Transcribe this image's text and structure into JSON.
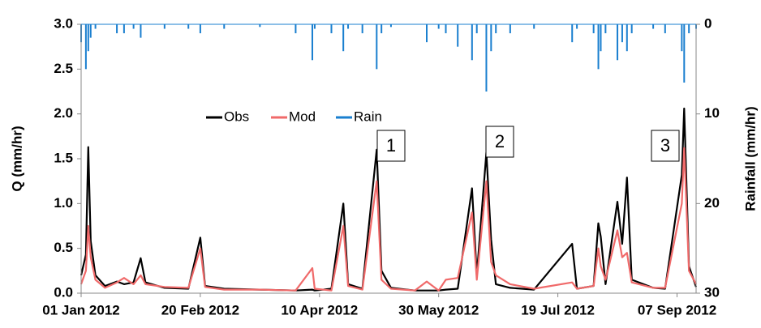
{
  "chart_data": {
    "type": "line",
    "y_label": "Q (mm/hr)",
    "y2_label": "Rainfall (mm/hr)",
    "x": [
      "2012-01-01",
      "2012-01-03",
      "2012-01-04",
      "2012-01-05",
      "2012-01-07",
      "2012-01-11",
      "2012-01-16",
      "2012-01-19",
      "2012-01-23",
      "2012-01-26",
      "2012-01-28",
      "2012-02-05",
      "2012-02-15",
      "2012-02-20",
      "2012-02-22",
      "2012-03-01",
      "2012-03-16",
      "2012-03-31",
      "2012-04-07",
      "2012-04-08",
      "2012-04-15",
      "2012-04-20",
      "2012-04-22",
      "2012-04-28",
      "2012-05-04",
      "2012-05-06",
      "2012-05-10",
      "2012-05-20",
      "2012-05-25",
      "2012-05-30",
      "2012-06-02",
      "2012-06-07",
      "2012-06-13",
      "2012-06-15",
      "2012-06-19",
      "2012-06-21",
      "2012-06-23",
      "2012-06-29",
      "2012-07-09",
      "2012-07-25",
      "2012-07-27",
      "2012-08-03",
      "2012-08-05",
      "2012-08-06",
      "2012-08-08",
      "2012-08-13",
      "2012-08-15",
      "2012-08-17",
      "2012-08-19",
      "2012-08-28",
      "2012-09-02",
      "2012-09-09",
      "2012-09-10",
      "2012-09-12",
      "2012-09-15"
    ],
    "series": [
      {
        "name": "Obs",
        "color": "#000000",
        "values": [
          0.2,
          0.43,
          1.63,
          0.58,
          0.2,
          0.08,
          0.13,
          0.1,
          0.12,
          0.39,
          0.12,
          0.06,
          0.05,
          0.62,
          0.08,
          0.05,
          0.04,
          0.03,
          0.04,
          0.03,
          0.05,
          1.0,
          0.1,
          0.05,
          1.6,
          0.25,
          0.06,
          0.03,
          0.03,
          0.03,
          0.04,
          0.05,
          1.17,
          0.2,
          1.57,
          0.6,
          0.1,
          0.06,
          0.04,
          0.55,
          0.05,
          0.08,
          0.78,
          0.63,
          0.1,
          1.02,
          0.55,
          1.29,
          0.15,
          0.06,
          0.05,
          1.32,
          2.06,
          0.3,
          0.07
        ]
      },
      {
        "name": "Mod",
        "color": "#f06a6a",
        "values": [
          0.1,
          0.25,
          0.75,
          0.4,
          0.15,
          0.06,
          0.12,
          0.17,
          0.1,
          0.2,
          0.1,
          0.07,
          0.06,
          0.5,
          0.07,
          0.04,
          0.04,
          0.03,
          0.28,
          0.05,
          0.03,
          0.75,
          0.08,
          0.04,
          1.25,
          0.15,
          0.05,
          0.03,
          0.13,
          0.03,
          0.15,
          0.17,
          0.9,
          0.15,
          1.25,
          0.35,
          0.2,
          0.1,
          0.05,
          0.12,
          0.05,
          0.08,
          0.5,
          0.3,
          0.15,
          0.7,
          0.4,
          0.45,
          0.12,
          0.06,
          0.06,
          1.0,
          1.62,
          0.25,
          0.1
        ]
      },
      {
        "name": "Rain",
        "color": "#1a7fcf",
        "axis": "y2",
        "values": [
          2,
          5,
          3,
          1.5,
          0.5,
          0,
          1,
          1,
          0.5,
          1.5,
          0,
          0.5,
          0.5,
          1,
          0,
          0.5,
          0.3,
          1,
          4,
          0.5,
          1,
          3,
          0.5,
          1,
          5,
          1,
          0.3,
          0,
          2,
          0.5,
          1,
          2.5,
          4,
          1,
          7.5,
          3,
          1,
          1,
          0.5,
          2,
          0.5,
          1,
          5,
          3,
          1,
          4,
          2,
          3,
          1,
          0.5,
          1,
          3,
          6.5,
          1,
          0.5
        ]
      }
    ],
    "xlim": [
      "2012-01-01",
      "2012-09-15"
    ],
    "xticks": [
      {
        "value": "2012-01-01",
        "label": "01 Jan 2012"
      },
      {
        "value": "2012-02-20",
        "label": "20 Feb 2012"
      },
      {
        "value": "2012-04-10",
        "label": "10 Apr 2012"
      },
      {
        "value": "2012-05-30",
        "label": "30 May 2012"
      },
      {
        "value": "2012-07-19",
        "label": "19 Jul 2012"
      },
      {
        "value": "2012-09-07",
        "label": "07 Sep 2012"
      }
    ],
    "ylim": [
      0,
      3
    ],
    "yticks": [
      {
        "value": 0,
        "label": "0.0"
      },
      0.5,
      {
        "value": 1,
        "label": "1.0"
      },
      1.5,
      {
        "value": 2,
        "label": "2.0"
      },
      2.5,
      {
        "value": 3,
        "label": "3.0"
      }
    ],
    "y2lim": [
      0,
      30
    ],
    "y2ticks": [
      0,
      10,
      20,
      30
    ],
    "y2_inverted": true,
    "legend": "upper center",
    "annotations": [
      "1",
      "2",
      "3"
    ]
  }
}
